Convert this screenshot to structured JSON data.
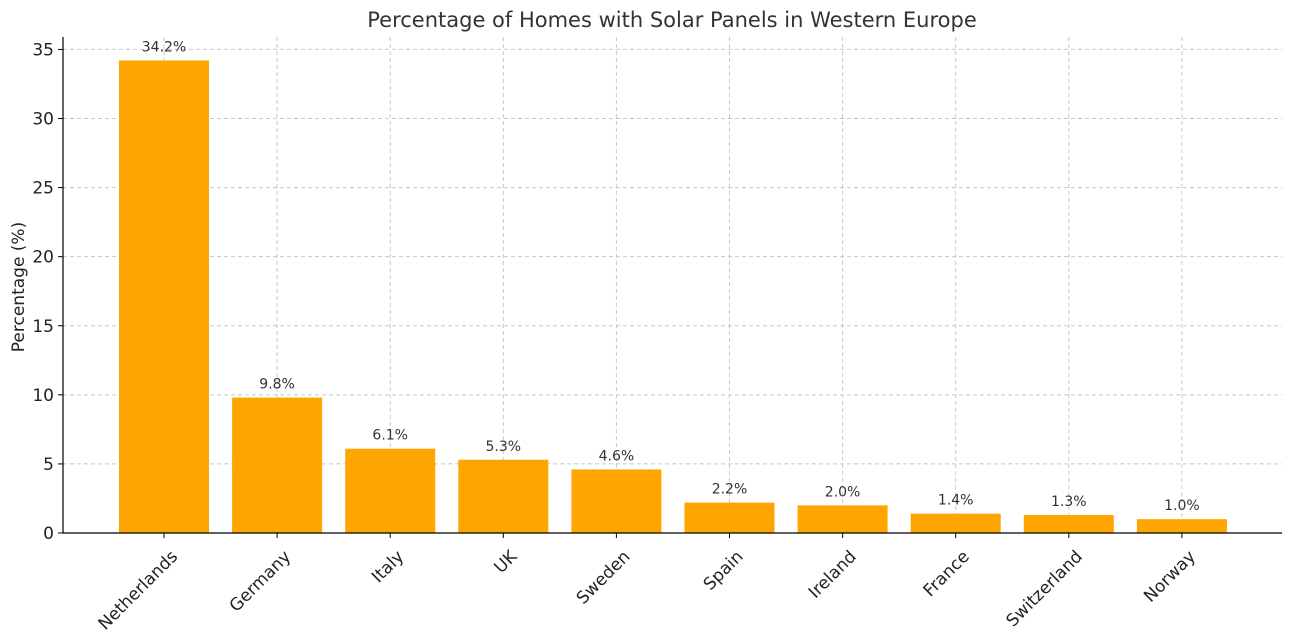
{
  "chart_data": {
    "type": "bar",
    "title": "Percentage of Homes with Solar Panels in Western Europe",
    "xlabel": "",
    "ylabel": "Percentage (%)",
    "categories": [
      "Netherlands",
      "Germany",
      "Italy",
      "UK",
      "Sweden",
      "Spain",
      "Ireland",
      "France",
      "Switzerland",
      "Norway"
    ],
    "values": [
      34.2,
      9.8,
      6.1,
      5.3,
      4.6,
      2.2,
      2.0,
      1.4,
      1.3,
      1.0
    ],
    "value_labels": [
      "34.2%",
      "9.8%",
      "6.1%",
      "5.3%",
      "4.6%",
      "2.2%",
      "2.0%",
      "1.4%",
      "1.3%",
      "1.0%"
    ],
    "ylim": [
      0,
      35.9
    ],
    "yticks": [
      0,
      5,
      10,
      15,
      20,
      25,
      30,
      35
    ],
    "grid": true,
    "bar_color": "#FFA500"
  }
}
